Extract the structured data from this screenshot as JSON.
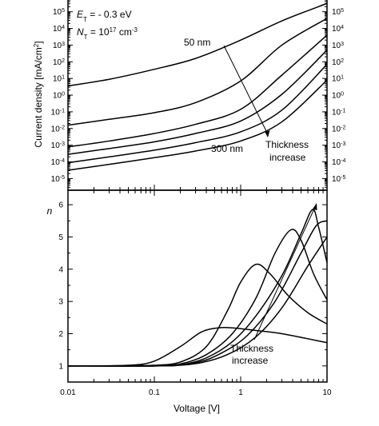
{
  "chart_data": [
    {
      "type": "line",
      "panel": "top",
      "ylabel": "Current density [mA/cm²]",
      "ylabel_base": "Current density [mA/cm",
      "ylabel_sup": "2",
      "ylabel_end": "]",
      "xscale": "log",
      "yscale": "log",
      "xlim": [
        0.01,
        10
      ],
      "ylim_exp": [
        -5.7,
        5.8
      ],
      "ytick_exponents": [
        -5,
        -4,
        -3,
        -2,
        -1,
        0,
        1,
        2,
        3,
        4,
        5
      ],
      "ytick_base": "10",
      "annotations": {
        "et_sym": "E",
        "et_sub": "T",
        "et_val": " = - 0.3 eV",
        "nt_sym": "N",
        "nt_sub": "T",
        "nt_val": " = 10",
        "nt_exp": "17",
        "nt_unit": " cm",
        "nt_unit_exp": "-3",
        "label_50": "50 nm",
        "label_300": "300 nm",
        "thickness_1": "Thickness",
        "thickness_2": "increase"
      },
      "series": [
        {
          "points": [
            [
              0.01,
              0.55
            ],
            [
              0.03,
              0.95
            ],
            [
              0.1,
              1.55
            ],
            [
              0.3,
              2.2
            ],
            [
              1,
              3.3
            ],
            [
              3,
              4.45
            ],
            [
              10,
              5.5
            ]
          ]
        },
        {
          "points": [
            [
              0.01,
              -1.8
            ],
            [
              0.03,
              -1.45
            ],
            [
              0.1,
              -1.05
            ],
            [
              0.3,
              -0.45
            ],
            [
              1,
              0.85
            ],
            [
              3,
              3.0
            ],
            [
              10,
              4.6
            ]
          ]
        },
        {
          "points": [
            [
              0.01,
              -3.1
            ],
            [
              0.03,
              -2.75
            ],
            [
              0.1,
              -2.3
            ],
            [
              0.3,
              -1.75
            ],
            [
              1,
              -0.85
            ],
            [
              3,
              1.2
            ],
            [
              10,
              3.6
            ]
          ]
        },
        {
          "points": [
            [
              0.01,
              -3.55
            ],
            [
              0.03,
              -3.2
            ],
            [
              0.1,
              -2.8
            ],
            [
              0.3,
              -2.3
            ],
            [
              1,
              -1.55
            ],
            [
              3,
              0.05
            ],
            [
              10,
              2.7
            ]
          ]
        },
        {
          "points": [
            [
              0.01,
              -4.05
            ],
            [
              0.03,
              -3.7
            ],
            [
              0.1,
              -3.3
            ],
            [
              0.3,
              -2.85
            ],
            [
              1,
              -2.2
            ],
            [
              3,
              -0.9
            ],
            [
              10,
              1.85
            ]
          ]
        },
        {
          "points": [
            [
              0.01,
              -4.5
            ],
            [
              0.03,
              -4.15
            ],
            [
              0.1,
              -3.75
            ],
            [
              0.3,
              -3.35
            ],
            [
              1,
              -2.75
            ],
            [
              3,
              -1.6
            ],
            [
              10,
              0.9
            ]
          ]
        }
      ]
    },
    {
      "type": "line",
      "panel": "bottom",
      "xlabel": "Voltage [V]",
      "ylabel": "n",
      "xscale": "log",
      "xlim": [
        0.01,
        10
      ],
      "ylim": [
        0.5,
        6.45
      ],
      "xtick_labels": [
        "0.01",
        "0.1",
        "1",
        "10"
      ],
      "xtick_values": [
        0.01,
        0.1,
        1,
        10
      ],
      "ytick_values": [
        1,
        2,
        3,
        4,
        5,
        6
      ],
      "annotations": {
        "thickness_1": "Thickness",
        "thickness_2": "increase"
      },
      "series": [
        {
          "points": [
            [
              0.01,
              1.0
            ],
            [
              0.05,
              1.02
            ],
            [
              0.1,
              1.15
            ],
            [
              0.2,
              1.6
            ],
            [
              0.35,
              2.05
            ],
            [
              0.55,
              2.18
            ],
            [
              0.8,
              2.18
            ],
            [
              1.5,
              2.1
            ],
            [
              3,
              2.0
            ],
            [
              10,
              1.72
            ]
          ]
        },
        {
          "points": [
            [
              0.01,
              1.0
            ],
            [
              0.05,
              1.0
            ],
            [
              0.1,
              1.02
            ],
            [
              0.2,
              1.12
            ],
            [
              0.4,
              1.6
            ],
            [
              0.7,
              2.7
            ],
            [
              1.0,
              3.6
            ],
            [
              1.5,
              4.15
            ],
            [
              2.2,
              3.85
            ],
            [
              3.5,
              3.2
            ],
            [
              6,
              2.65
            ],
            [
              10,
              2.3
            ]
          ]
        },
        {
          "points": [
            [
              0.01,
              1.0
            ],
            [
              0.1,
              1.01
            ],
            [
              0.2,
              1.06
            ],
            [
              0.4,
              1.35
            ],
            [
              0.8,
              2.0
            ],
            [
              1.5,
              3.1
            ],
            [
              2.5,
              4.5
            ],
            [
              3.8,
              5.22
            ],
            [
              5,
              4.9
            ],
            [
              7,
              3.85
            ],
            [
              10,
              3.05
            ]
          ]
        },
        {
          "points": [
            [
              0.01,
              1.0
            ],
            [
              0.1,
              1.0
            ],
            [
              0.2,
              1.03
            ],
            [
              0.4,
              1.25
            ],
            [
              0.8,
              1.75
            ],
            [
              1.5,
              2.55
            ],
            [
              3,
              3.8
            ],
            [
              5,
              5.1
            ],
            [
              6.8,
              5.85
            ],
            [
              8,
              5.3
            ],
            [
              10,
              4.2
            ]
          ]
        },
        {
          "points": [
            [
              0.01,
              1.0
            ],
            [
              0.1,
              1.0
            ],
            [
              0.3,
              1.1
            ],
            [
              0.6,
              1.4
            ],
            [
              1.2,
              1.95
            ],
            [
              2.5,
              3.0
            ],
            [
              5,
              4.5
            ],
            [
              7.5,
              5.35
            ],
            [
              10,
              5.5
            ]
          ]
        },
        {
          "points": [
            [
              0.01,
              1.0
            ],
            [
              0.1,
              1.0
            ],
            [
              0.3,
              1.07
            ],
            [
              0.7,
              1.35
            ],
            [
              1.5,
              1.9
            ],
            [
              3,
              2.8
            ],
            [
              6,
              4.1
            ],
            [
              10,
              5.0
            ]
          ]
        }
      ]
    }
  ]
}
